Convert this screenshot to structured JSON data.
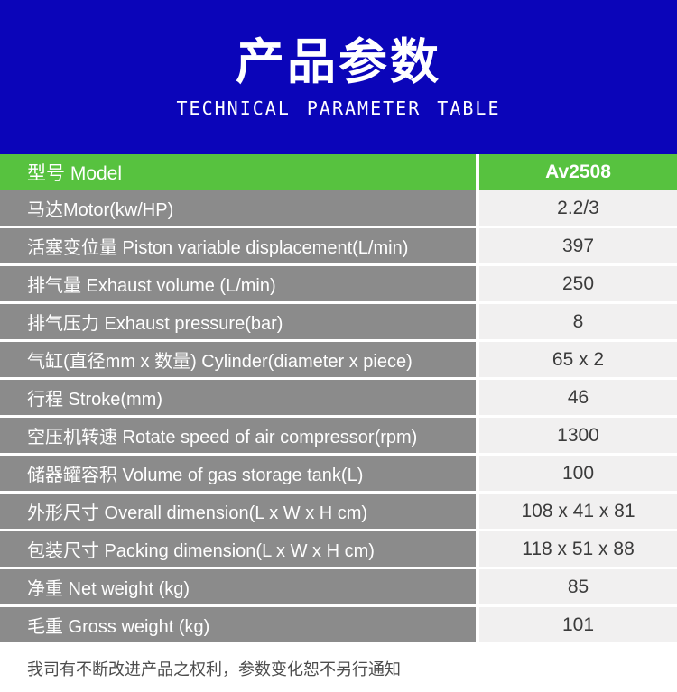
{
  "banner": {
    "title": "产品参数",
    "subtitle": "TECHNICAL PARAMETER TABLE",
    "bg_color": "#0b05b9",
    "text_color": "#ffffff"
  },
  "table": {
    "model_row": {
      "label": "型号 Model",
      "value": "Av2508",
      "bg_color": "#57c23f"
    },
    "label_bg_color": "#8b8b8b",
    "value_bg_color": "#f1f0f0",
    "rows": [
      {
        "label": "马达Motor(kw/HP)",
        "value": "2.2/3"
      },
      {
        "label": "活塞变位量 Piston variable displacement(L/min)",
        "value": "397"
      },
      {
        "label": "排气量 Exhaust volume (L/min)",
        "value": "250"
      },
      {
        "label": "排气压力 Exhaust pressure(bar)",
        "value": "8"
      },
      {
        "label": "气缸(直径mm x 数量) Cylinder(diameter x piece)",
        "value": "65 x 2"
      },
      {
        "label": "行程 Stroke(mm)",
        "value": "46"
      },
      {
        "label": "空压机转速 Rotate speed of air compressor(rpm)",
        "value": "1300"
      },
      {
        "label": "储器罐容积 Volume of gas storage tank(L)",
        "value": "100"
      },
      {
        "label": "外形尺寸 Overall dimension(L x W x H cm)",
        "value": "108 x 41 x 81"
      },
      {
        "label": "包装尺寸 Packing dimension(L x W x H cm)",
        "value": "118 x 51 x 88"
      },
      {
        "label": "净重 Net weight (kg)",
        "value": "85"
      },
      {
        "label": "毛重 Gross weight (kg)",
        "value": "101"
      }
    ]
  },
  "footer": {
    "note": "我司有不断改进产品之权利，参数变化恕不另行通知"
  }
}
